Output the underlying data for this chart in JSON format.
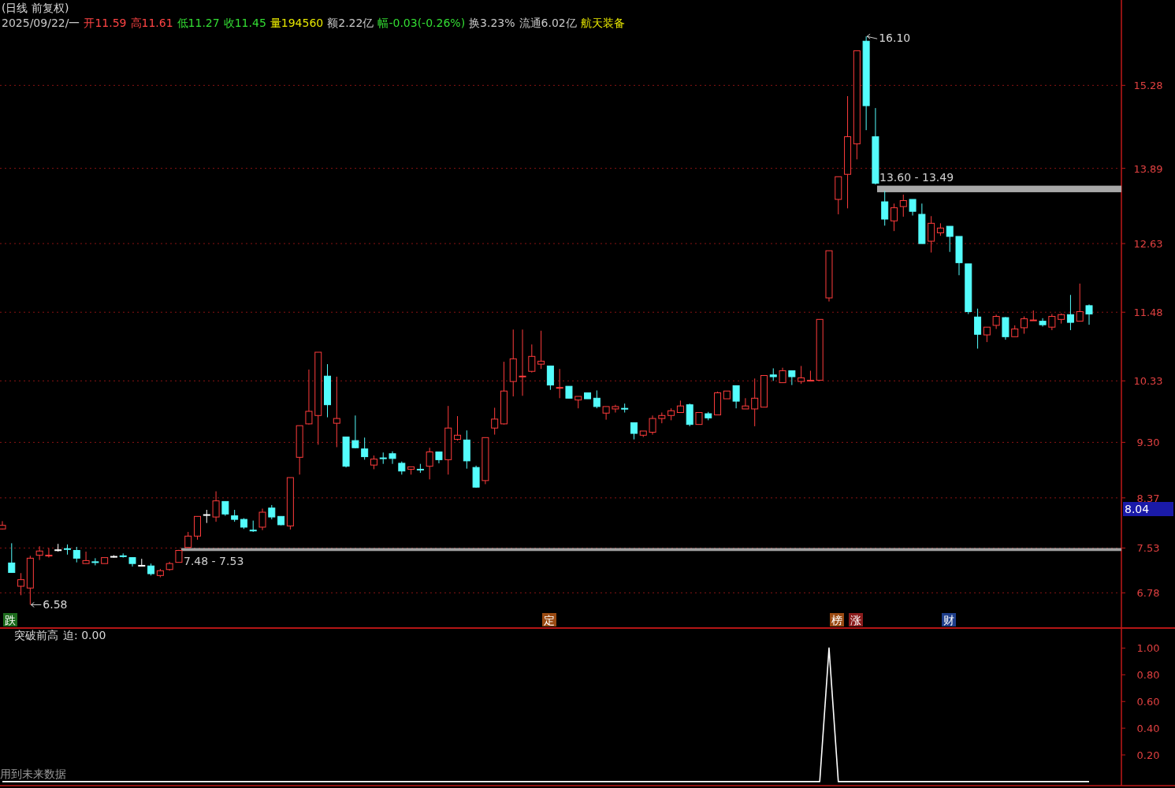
{
  "chart_data": [
    {
      "type": "candlestick",
      "title": "(日线 前复权)",
      "categories": [
        null,
        null,
        null,
        null,
        null,
        null,
        null,
        null,
        null,
        null,
        null,
        null,
        null,
        null,
        null,
        null,
        null,
        null,
        null,
        null,
        null,
        null,
        null,
        null,
        null,
        null,
        null,
        null,
        null,
        null,
        null,
        null,
        null,
        null,
        null,
        null,
        null,
        null,
        null,
        null,
        null,
        null,
        null,
        null,
        null,
        null,
        null,
        null,
        null,
        null,
        null,
        null,
        null,
        null,
        null,
        null,
        null,
        null,
        null,
        null,
        null,
        null,
        null,
        null,
        null,
        null,
        null,
        null,
        null,
        null,
        null,
        null,
        null,
        null,
        null,
        null,
        null,
        null,
        null,
        null,
        null,
        null,
        null,
        null,
        null,
        null,
        null,
        null,
        null,
        null,
        null,
        null,
        null,
        null,
        null,
        null,
        null,
        null,
        null,
        null,
        null,
        null,
        null,
        null,
        null,
        null,
        null,
        null,
        null,
        null,
        null,
        null,
        null,
        null,
        null,
        null,
        null,
        null
      ],
      "ohlc": [
        [
          7.85,
          7.98,
          7.84,
          7.91
        ],
        [
          7.28,
          7.61,
          7.12,
          7.12
        ],
        [
          6.89,
          7.11,
          6.74,
          7.0
        ],
        [
          6.86,
          7.4,
          6.58,
          7.36
        ],
        [
          7.41,
          7.56,
          7.33,
          7.48
        ],
        [
          7.4,
          7.53,
          7.37,
          7.41
        ],
        [
          7.5,
          7.6,
          7.47,
          7.5
        ],
        [
          7.52,
          7.59,
          7.42,
          7.51
        ],
        [
          7.49,
          7.55,
          7.29,
          7.36
        ],
        [
          7.27,
          7.47,
          7.27,
          7.32
        ],
        [
          7.3,
          7.36,
          7.24,
          7.29
        ],
        [
          7.27,
          7.37,
          7.27,
          7.37
        ],
        [
          7.39,
          7.41,
          7.37,
          7.39
        ],
        [
          7.4,
          7.44,
          7.37,
          7.39
        ],
        [
          7.37,
          7.37,
          7.22,
          7.27
        ],
        [
          7.24,
          7.35,
          7.24,
          7.24
        ],
        [
          7.23,
          7.27,
          7.07,
          7.1
        ],
        [
          7.07,
          7.18,
          7.04,
          7.15
        ],
        [
          7.17,
          7.3,
          7.15,
          7.27
        ],
        [
          7.29,
          7.5,
          7.29,
          7.49
        ],
        [
          7.54,
          7.8,
          7.53,
          7.73
        ],
        [
          7.73,
          8.06,
          7.67,
          8.06
        ],
        [
          8.09,
          8.17,
          7.95,
          8.09
        ],
        [
          8.05,
          8.48,
          7.97,
          8.32
        ],
        [
          8.31,
          8.31,
          8.07,
          8.1
        ],
        [
          8.07,
          8.17,
          7.97,
          8.01
        ],
        [
          8.01,
          8.03,
          7.85,
          7.88
        ],
        [
          7.83,
          7.99,
          7.8,
          7.82
        ],
        [
          7.88,
          8.19,
          7.83,
          8.13
        ],
        [
          8.2,
          8.25,
          8.01,
          8.05
        ],
        [
          8.06,
          8.06,
          7.91,
          7.92
        ],
        [
          7.9,
          8.71,
          7.84,
          8.71
        ],
        [
          9.05,
          9.58,
          8.76,
          9.58
        ],
        [
          9.61,
          10.52,
          9.6,
          9.82
        ],
        [
          9.75,
          10.81,
          9.26,
          10.81
        ],
        [
          10.41,
          10.61,
          9.72,
          9.93
        ],
        [
          9.62,
          10.4,
          9.22,
          9.7
        ],
        [
          9.39,
          9.39,
          8.88,
          8.9
        ],
        [
          9.33,
          9.75,
          9.2,
          9.21
        ],
        [
          9.19,
          9.38,
          9.01,
          9.06
        ],
        [
          8.92,
          9.08,
          8.85,
          9.02
        ],
        [
          9.04,
          9.13,
          8.94,
          9.03
        ],
        [
          9.11,
          9.15,
          8.94,
          9.03
        ],
        [
          8.95,
          8.98,
          8.76,
          8.82
        ],
        [
          8.85,
          8.89,
          8.76,
          8.89
        ],
        [
          8.85,
          8.94,
          8.79,
          8.84
        ],
        [
          8.9,
          9.21,
          8.68,
          9.14
        ],
        [
          9.14,
          9.14,
          8.95,
          9.01
        ],
        [
          9.01,
          9.91,
          8.76,
          9.54
        ],
        [
          9.35,
          9.74,
          9.33,
          9.42
        ],
        [
          9.34,
          9.5,
          8.86,
          8.99
        ],
        [
          8.88,
          8.91,
          8.54,
          8.55
        ],
        [
          8.66,
          9.38,
          8.6,
          9.38
        ],
        [
          9.54,
          9.88,
          9.43,
          9.69
        ],
        [
          9.61,
          10.65,
          9.6,
          10.16
        ],
        [
          10.32,
          11.19,
          10.07,
          10.7
        ],
        [
          10.4,
          11.19,
          10.08,
          10.41
        ],
        [
          10.49,
          10.94,
          10.47,
          10.74
        ],
        [
          10.61,
          11.17,
          10.53,
          10.66
        ],
        [
          10.58,
          10.58,
          10.18,
          10.26
        ],
        [
          10.21,
          10.53,
          10.04,
          10.22
        ],
        [
          10.24,
          10.24,
          10.04,
          10.04
        ],
        [
          10.01,
          10.07,
          9.87,
          10.07
        ],
        [
          10.13,
          10.13,
          10.03,
          10.03
        ],
        [
          10.04,
          10.17,
          9.87,
          9.9
        ],
        [
          9.79,
          9.9,
          9.68,
          9.9
        ],
        [
          9.86,
          9.93,
          9.8,
          9.9
        ],
        [
          9.87,
          9.95,
          9.8,
          9.86
        ],
        [
          9.63,
          9.63,
          9.35,
          9.45
        ],
        [
          9.42,
          9.49,
          9.39,
          9.49
        ],
        [
          9.47,
          9.75,
          9.43,
          9.7
        ],
        [
          9.7,
          9.8,
          9.62,
          9.75
        ],
        [
          9.75,
          9.87,
          9.67,
          9.83
        ],
        [
          9.8,
          10.0,
          9.8,
          9.91
        ],
        [
          9.93,
          9.95,
          9.57,
          9.6
        ],
        [
          9.6,
          9.8,
          9.6,
          9.8
        ],
        [
          9.78,
          9.81,
          9.67,
          9.71
        ],
        [
          9.76,
          10.15,
          9.76,
          10.13
        ],
        [
          10.03,
          10.16,
          10.03,
          10.16
        ],
        [
          10.25,
          10.25,
          9.87,
          9.99
        ],
        [
          9.86,
          10.04,
          9.86,
          9.91
        ],
        [
          9.86,
          10.37,
          9.57,
          10.04
        ],
        [
          9.89,
          10.42,
          9.89,
          10.42
        ],
        [
          10.43,
          10.54,
          10.33,
          10.4
        ],
        [
          10.3,
          10.55,
          10.3,
          10.5
        ],
        [
          10.5,
          10.5,
          10.26,
          10.4
        ],
        [
          10.32,
          10.58,
          10.28,
          10.38
        ],
        [
          10.33,
          10.5,
          10.33,
          10.34
        ],
        [
          10.34,
          11.36,
          10.33,
          11.36
        ],
        [
          11.72,
          12.51,
          11.66,
          12.51
        ],
        [
          13.37,
          13.75,
          13.12,
          13.75
        ],
        [
          13.79,
          15.1,
          13.22,
          14.42
        ],
        [
          14.3,
          15.86,
          14.04,
          15.86
        ],
        [
          16.02,
          16.1,
          14.53,
          14.94
        ],
        [
          14.42,
          14.9,
          13.62,
          13.64
        ],
        [
          13.33,
          13.51,
          12.93,
          13.04
        ],
        [
          13.01,
          13.3,
          12.84,
          13.23
        ],
        [
          13.25,
          13.45,
          13.08,
          13.35
        ],
        [
          13.37,
          13.37,
          13.1,
          13.17
        ],
        [
          13.12,
          13.3,
          12.63,
          12.63
        ],
        [
          12.67,
          13.09,
          12.48,
          12.97
        ],
        [
          12.81,
          12.97,
          12.76,
          12.89
        ],
        [
          12.92,
          12.92,
          12.49,
          12.75
        ],
        [
          12.75,
          12.75,
          12.1,
          12.31
        ],
        [
          12.29,
          12.29,
          11.45,
          11.49
        ],
        [
          11.4,
          11.54,
          10.87,
          11.11
        ],
        [
          11.1,
          11.23,
          10.98,
          11.23
        ],
        [
          11.26,
          11.44,
          11.2,
          11.41
        ],
        [
          11.39,
          11.4,
          11.02,
          11.07
        ],
        [
          11.07,
          11.26,
          11.07,
          11.2
        ],
        [
          11.22,
          11.41,
          11.12,
          11.37
        ],
        [
          11.34,
          11.51,
          11.34,
          11.35
        ],
        [
          11.33,
          11.38,
          11.24,
          11.27
        ],
        [
          11.23,
          11.45,
          11.18,
          11.41
        ],
        [
          11.36,
          11.46,
          11.29,
          11.44
        ],
        [
          11.44,
          11.77,
          11.18,
          11.31
        ],
        [
          11.33,
          11.96,
          11.33,
          11.49
        ],
        [
          11.59,
          11.61,
          11.27,
          11.45
        ]
      ],
      "ylim": [
        6.19,
        16.71
      ],
      "yticks": [
        15.28,
        13.89,
        12.63,
        11.48,
        10.33,
        {
          "value": 9.3,
          "label": "9.30"
        },
        8.37,
        7.53,
        6.78
      ],
      "grid": "y",
      "tick_labels": "y",
      "bands": [
        {
          "axis": "y",
          "from": 13.49,
          "to": 13.6,
          "label": "13.60 - 13.49",
          "color": "#a8a8a8"
        },
        {
          "axis": "y",
          "from": 7.48,
          "to": 7.53,
          "label": "7.48 - 7.53",
          "color": "#a0a0a0"
        }
      ],
      "annotations": [
        "2025/09/22/一",
        "开11.59",
        "高11.61",
        "低11.27",
        "收11.45",
        "量194560",
        "额2.22亿",
        "幅-0.03(-0.26%)",
        "换3.23%",
        "流通6.02亿",
        "航天装备",
        "16.10",
        "6.58",
        "8.04",
        "跌",
        "定",
        "榜",
        "涨",
        "财"
      ]
    },
    {
      "type": "line",
      "title": "突破前高",
      "categories": [
        null,
        null,
        null,
        null,
        null,
        null,
        null,
        null,
        null,
        null,
        null,
        null,
        null,
        null,
        null,
        null,
        null,
        null,
        null,
        null,
        null,
        null,
        null,
        null,
        null,
        null,
        null,
        null,
        null,
        null,
        null,
        null,
        null,
        null,
        null,
        null,
        null,
        null,
        null,
        null,
        null,
        null,
        null,
        null,
        null,
        null,
        null,
        null,
        null,
        null,
        null,
        null,
        null,
        null,
        null,
        null,
        null,
        null,
        null,
        null,
        null,
        null,
        null,
        null,
        null,
        null,
        null,
        null,
        null,
        null,
        null,
        null,
        null,
        null,
        null,
        null,
        null,
        null,
        null,
        null,
        null,
        null,
        null,
        null,
        null,
        null,
        null,
        null,
        null,
        null,
        null,
        null,
        null,
        null,
        null,
        null,
        null,
        null,
        null,
        null,
        null,
        null,
        null,
        null,
        null,
        null,
        null,
        null,
        null,
        null,
        null,
        null,
        null,
        null,
        null,
        null,
        null,
        null
      ],
      "series": [
        {
          "color": "#ffffff",
          "values": [
            0,
            0,
            0,
            0,
            0,
            0,
            0,
            0,
            0,
            0,
            0,
            0,
            0,
            0,
            0,
            0,
            0,
            0,
            0,
            0,
            0,
            0,
            0,
            0,
            0,
            0,
            0,
            0,
            0,
            0,
            0,
            0,
            0,
            0,
            0,
            0,
            0,
            0,
            0,
            0,
            0,
            0,
            0,
            0,
            0,
            0,
            0,
            0,
            0,
            0,
            0,
            0,
            0,
            0,
            0,
            0,
            0,
            0,
            0,
            0,
            0,
            0,
            0,
            0,
            0,
            0,
            0,
            0,
            0,
            0,
            0,
            0,
            0,
            0,
            0,
            0,
            0,
            0,
            0,
            0,
            0,
            0,
            0,
            0,
            0,
            0,
            0,
            0,
            0,
            1,
            0,
            0,
            0,
            0,
            0,
            0,
            0,
            0,
            0,
            0,
            0,
            0,
            0,
            0,
            0,
            0,
            0,
            0,
            0,
            0,
            0,
            0,
            0,
            0,
            0,
            0,
            0,
            0
          ]
        }
      ],
      "ylim": [
        -0.03,
        1.15
      ],
      "yticks": [
        {
          "value": 0.2,
          "label": "0.20"
        },
        {
          "value": 0.4,
          "label": "0.40"
        },
        {
          "value": 0.6,
          "label": "0.60"
        },
        {
          "value": 0.8,
          "label": "0.80"
        },
        {
          "value": 1,
          "label": "1.00"
        }
      ],
      "tick_labels": "y",
      "annotations": [
        "迫: 0.00",
        "用到未来数据"
      ]
    }
  ]
}
